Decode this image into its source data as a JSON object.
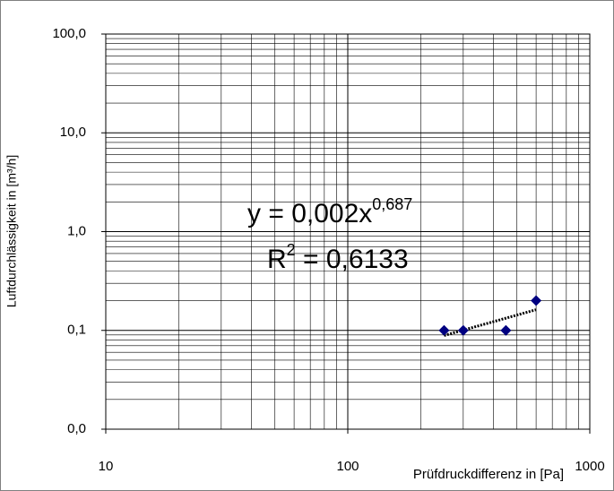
{
  "chart_data": {
    "type": "scatter",
    "x_label": "Prüfdruckdifferenz in [Pa]",
    "y_label": "Luftdurchlässigkeit in [m³/h]",
    "x": [
      250,
      300,
      450,
      600
    ],
    "values": [
      0.1,
      0.1,
      0.1,
      0.2
    ],
    "color": "#000080",
    "xlim": [
      10,
      1000
    ],
    "ylim": [
      0.01,
      100
    ],
    "xticks": [
      10,
      100,
      1000
    ],
    "yticks": [
      {
        "value": 0.01,
        "label": "0,0"
      },
      {
        "value": 0.1,
        "label": "0,1"
      },
      {
        "value": 1,
        "label": "1,0"
      },
      {
        "value": 10,
        "label": "10,0"
      },
      {
        "value": 100,
        "label": "100,0"
      }
    ],
    "log_x": true,
    "log_y": true,
    "grid": true,
    "minor_grid": true,
    "trendline": {
      "coefficient": 0.002,
      "exponent": 0.687,
      "equation": "y = 0,002x",
      "equation_exponent": "0,687",
      "r_squared_symbol": "R",
      "r_squared_power": "2",
      "r_squared_text": " = 0,6133",
      "r_squared": 0.6133
    }
  }
}
